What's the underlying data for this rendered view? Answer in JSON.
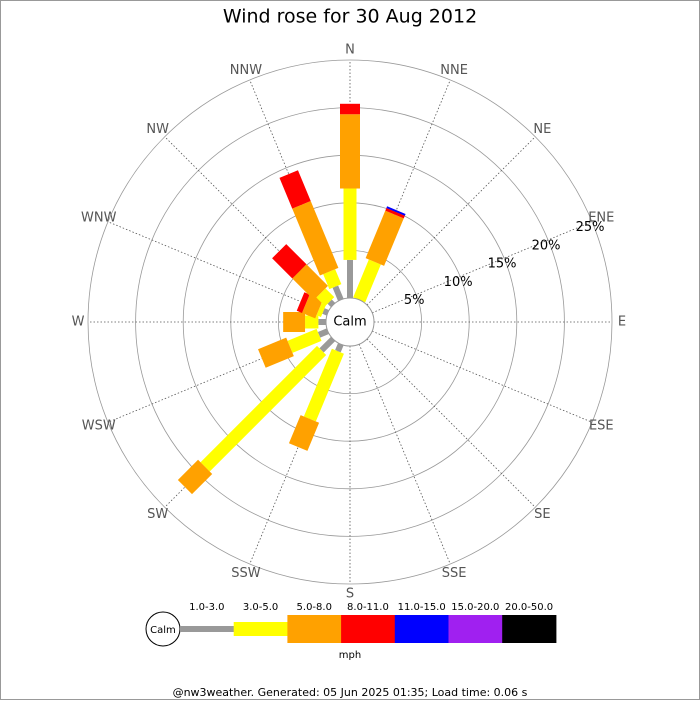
{
  "chart_data": {
    "type": "windrose",
    "title": "Wind rose for 30 Aug 2012",
    "directions": [
      "N",
      "NNE",
      "NE",
      "ENE",
      "E",
      "ESE",
      "SE",
      "SSE",
      "S",
      "SSW",
      "SW",
      "WSW",
      "W",
      "WNW",
      "NW",
      "NNW"
    ],
    "rlim": [
      0,
      25
    ],
    "rticks": [
      {
        "value": 5,
        "label": "5%"
      },
      {
        "value": 10,
        "label": "10%"
      },
      {
        "value": 15,
        "label": "15%"
      },
      {
        "value": 20,
        "label": "20%"
      },
      {
        "value": 25,
        "label": "25%"
      }
    ],
    "calm_label": "Calm",
    "unit": "mph",
    "series": [
      {
        "name": "1.0-3.0",
        "color": "#999999",
        "values": [
          4,
          0,
          0,
          0,
          0,
          0,
          0,
          0,
          0,
          0.8,
          1.7,
          1,
          0.8,
          0.5,
          0.5,
          1.5
        ]
      },
      {
        "name": "3.0-5.0",
        "color": "#ffff00",
        "values": [
          7.5,
          4.3,
          0,
          0,
          0,
          0,
          0,
          0,
          0,
          7.7,
          17.3,
          3.3,
          1.4,
          0.5,
          1.3,
          1.7
        ]
      },
      {
        "name": "5.0-8.0",
        "color": "#ffa100",
        "values": [
          7.8,
          5.4,
          0,
          0,
          0,
          0,
          0,
          0,
          0,
          3.2,
          3,
          3.2,
          2.3,
          1.5,
          3.2,
          7.6
        ]
      },
      {
        "name": "8.0-11.0",
        "color": "#ff0000",
        "values": [
          1.1,
          0.3,
          0,
          0,
          0,
          0,
          0,
          0,
          0,
          0,
          0,
          0,
          0,
          0.6,
          3,
          3.5
        ]
      },
      {
        "name": "11.0-15.0",
        "color": "#0000ff",
        "values": [
          0,
          0.2,
          0,
          0,
          0,
          0,
          0,
          0,
          0,
          0,
          0,
          0,
          0,
          0,
          0,
          0
        ]
      },
      {
        "name": "15.0-20.0",
        "color": "#a020f0",
        "values": [
          0,
          0,
          0,
          0,
          0,
          0,
          0,
          0,
          0,
          0,
          0,
          0,
          0,
          0,
          0,
          0
        ]
      },
      {
        "name": "20.0-50.0",
        "color": "#000000",
        "values": [
          0,
          0,
          0,
          0,
          0,
          0,
          0,
          0,
          0,
          0,
          0,
          0,
          0,
          0,
          0,
          0
        ]
      }
    ],
    "footer": "@nw3weather. Generated: 05 Jun 2025 01:35; Load time: 0.06 s"
  }
}
